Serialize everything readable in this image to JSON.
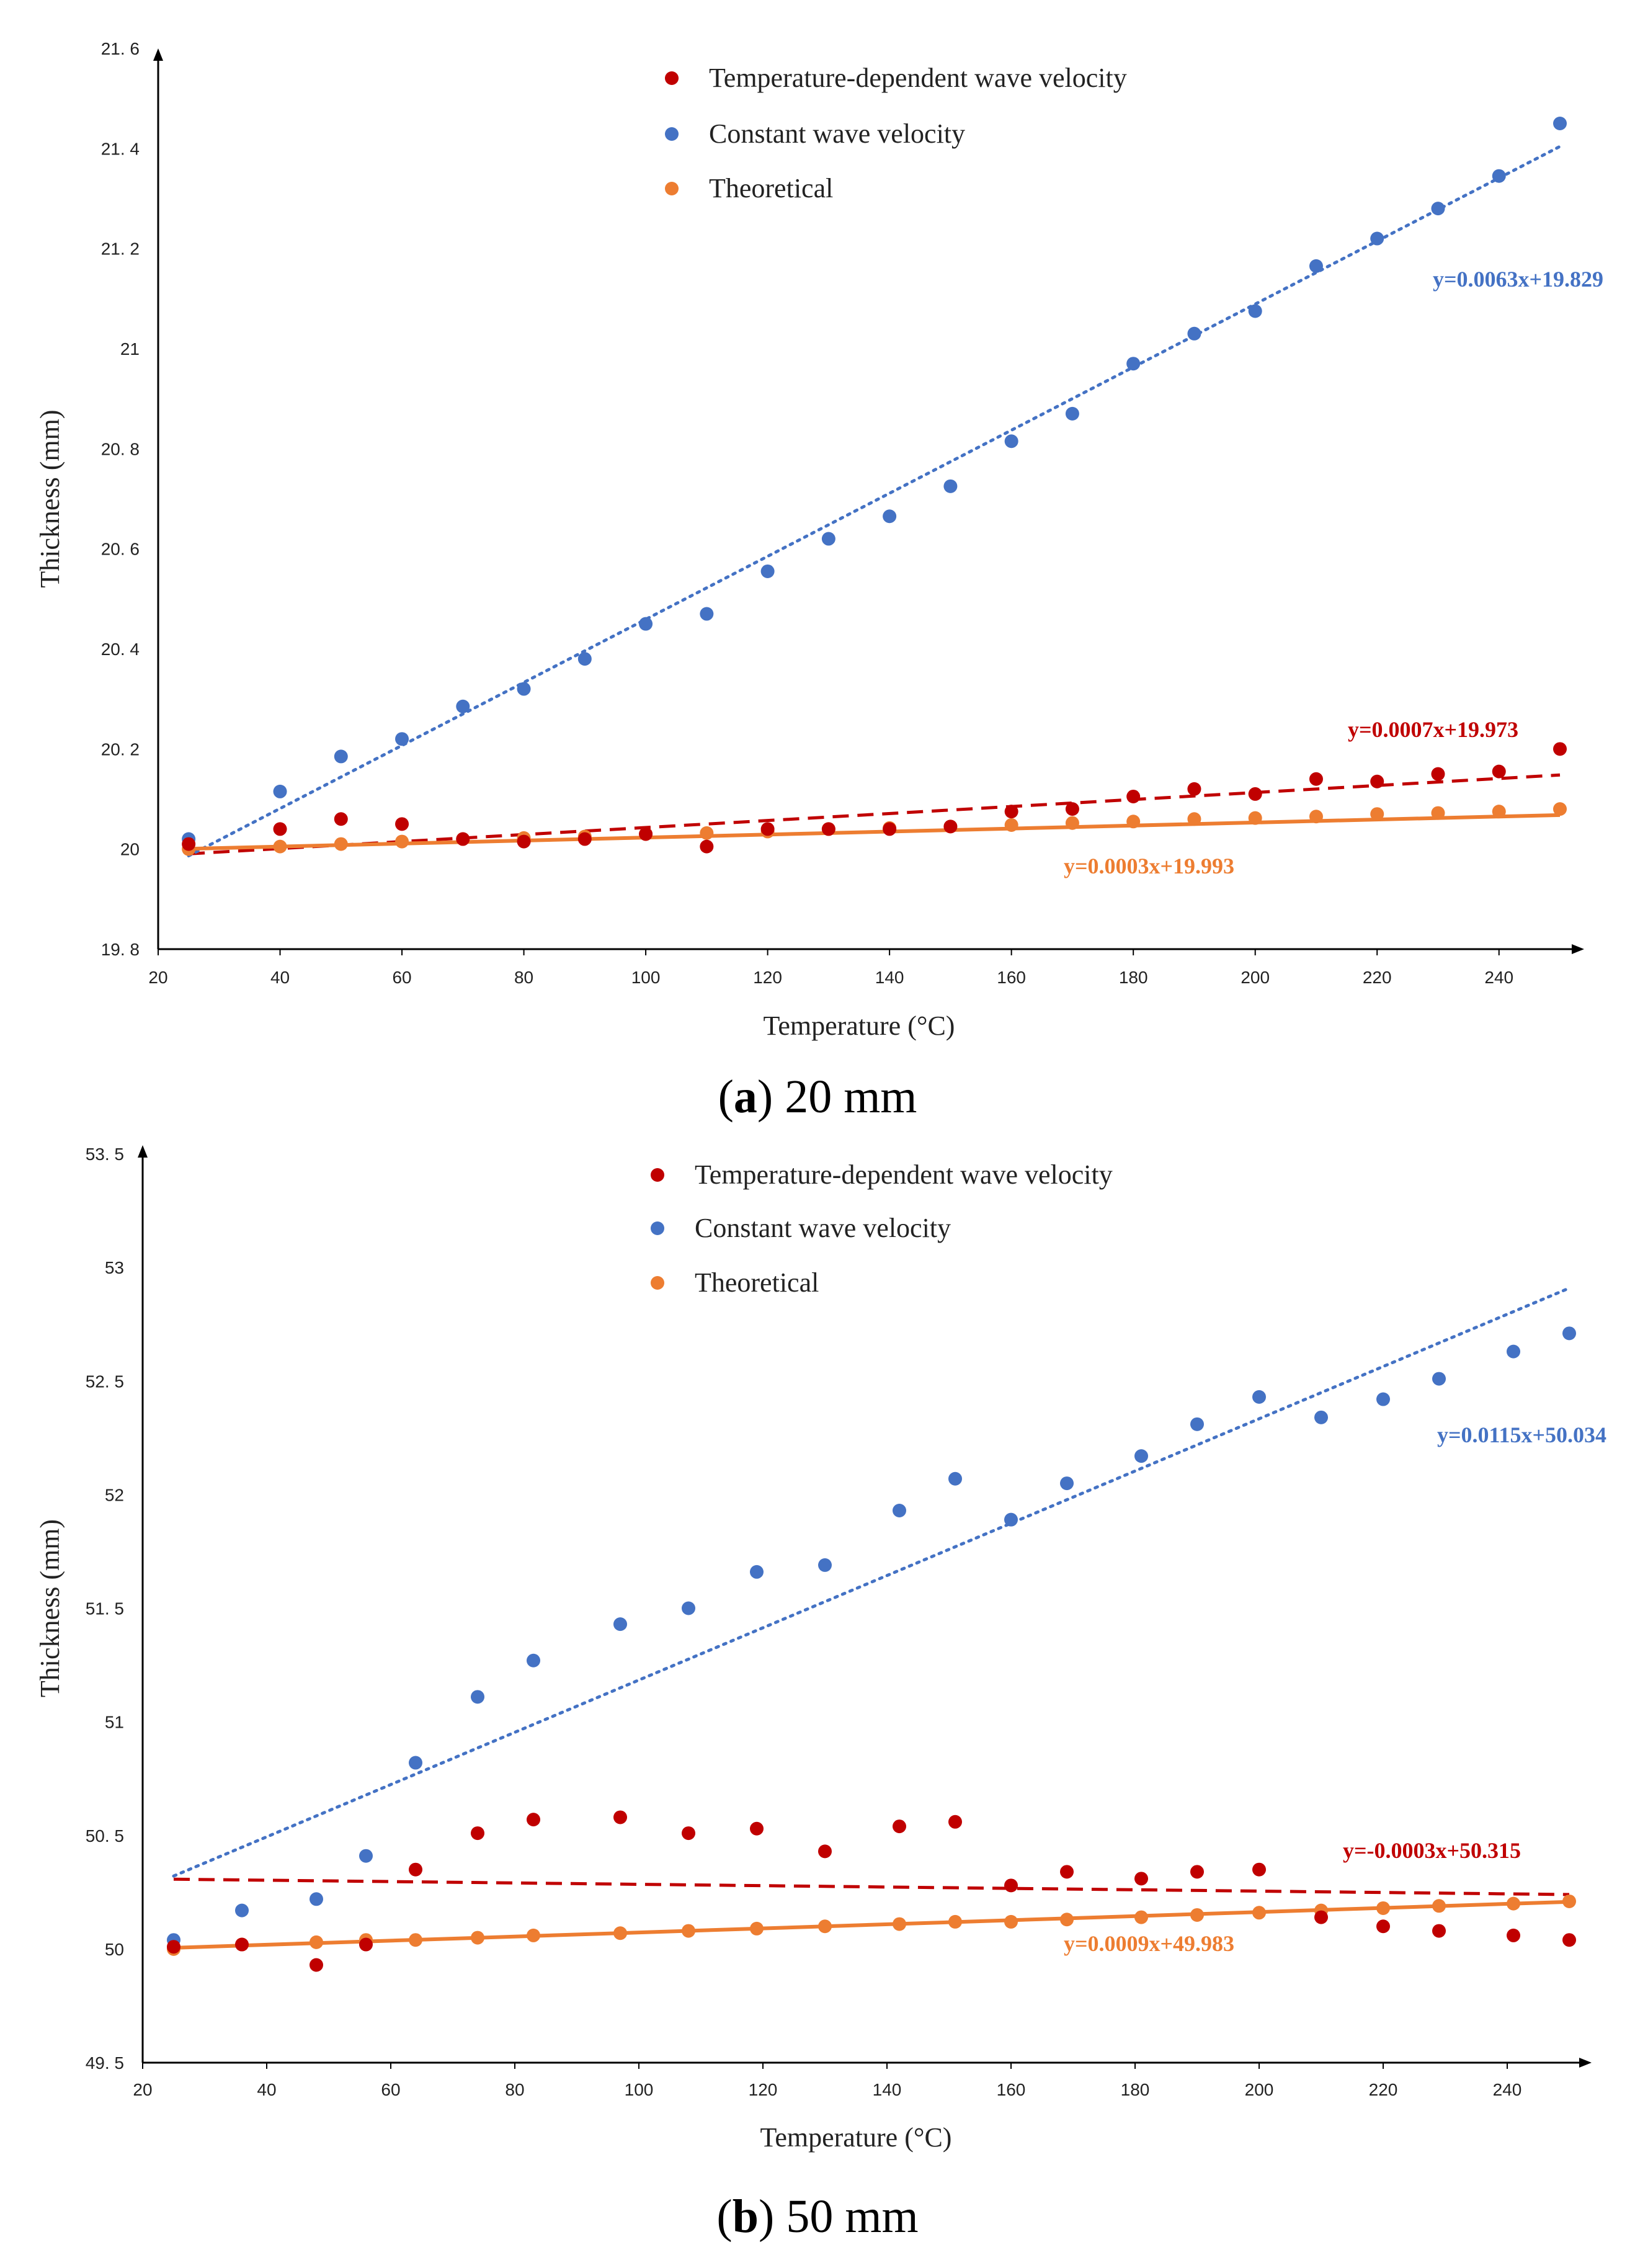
{
  "figure": {
    "captions": [
      {
        "letter": "a",
        "text": " 20 mm"
      },
      {
        "letter": "b",
        "text": " 50 mm"
      }
    ]
  },
  "colors": {
    "red": "#c00000",
    "blue": "#4472c4",
    "orange": "#ed7d31",
    "red_label": "#c00000",
    "blue_label": "#4472c4",
    "orange_label": "#ed7d31"
  },
  "chart_data": [
    {
      "type": "scatter",
      "title": "",
      "xlabel": "Temperature (°C)",
      "ylabel": "Thickness (mm)",
      "xlim": [
        20,
        250
      ],
      "ylim": [
        19.8,
        21.6
      ],
      "xticks": [
        20,
        40,
        60,
        80,
        100,
        120,
        140,
        160,
        180,
        200,
        220,
        240
      ],
      "yticks": [
        19.8,
        20,
        20.2,
        20.4,
        20.6,
        20.8,
        21,
        21.2,
        21.4,
        21.6
      ],
      "ytick_labels": [
        "19. 8",
        "20",
        "20. 2",
        "20. 4",
        "20. 6",
        "20. 8",
        "21",
        "21. 2",
        "21. 4",
        "21. 6"
      ],
      "legend": [
        "Temperature-dependent wave velocity",
        "Constant wave velocity",
        "Theoretical"
      ],
      "series": [
        {
          "name": "Temperature-dependent wave velocity",
          "color": "red",
          "x": [
            25,
            40,
            50,
            60,
            70,
            80,
            90,
            100,
            110,
            120,
            130,
            140,
            150,
            160,
            170,
            180,
            190,
            200,
            210,
            220,
            230,
            240,
            250
          ],
          "y": [
            20.01,
            20.04,
            20.06,
            20.05,
            20.02,
            20.015,
            20.02,
            20.03,
            20.005,
            20.04,
            20.04,
            20.04,
            20.045,
            20.075,
            20.08,
            20.105,
            20.12,
            20.11,
            20.14,
            20.135,
            20.15,
            20.155,
            20.2
          ],
          "trend": {
            "style": "dashed",
            "slope": 0.0007,
            "intercept": 19.973,
            "label": "y=0.0007x+19.973"
          }
        },
        {
          "name": "Constant wave velocity",
          "color": "blue",
          "x": [
            25,
            40,
            50,
            60,
            70,
            80,
            90,
            100,
            110,
            120,
            130,
            140,
            150,
            160,
            170,
            180,
            190,
            200,
            210,
            220,
            230,
            240,
            250
          ],
          "y": [
            20.02,
            20.115,
            20.185,
            20.22,
            20.285,
            20.32,
            20.38,
            20.45,
            20.47,
            20.555,
            20.62,
            20.665,
            20.725,
            20.815,
            20.87,
            20.97,
            21.03,
            21.075,
            21.165,
            21.22,
            21.28,
            21.345,
            21.45
          ],
          "trend": {
            "style": "dotted",
            "slope": 0.0063,
            "intercept": 19.829,
            "label": "y=0.0063x+19.829"
          }
        },
        {
          "name": "Theoretical",
          "color": "orange",
          "x": [
            25,
            40,
            50,
            60,
            70,
            80,
            90,
            100,
            110,
            120,
            130,
            140,
            150,
            160,
            170,
            180,
            190,
            200,
            210,
            220,
            230,
            240,
            250
          ],
          "y": [
            20.0,
            20.005,
            20.01,
            20.015,
            20.02,
            20.022,
            20.025,
            20.03,
            20.032,
            20.035,
            20.04,
            20.042,
            20.045,
            20.048,
            20.052,
            20.055,
            20.06,
            20.062,
            20.065,
            20.07,
            20.072,
            20.075,
            20.08
          ],
          "trend": {
            "style": "solid",
            "slope": 0.0003,
            "intercept": 19.993,
            "label": "y=0.0003x+19.993"
          }
        }
      ]
    },
    {
      "type": "scatter",
      "title": "",
      "xlabel": "Temperature (°C)",
      "ylabel": "Thickness (mm)",
      "xlim": [
        20,
        250
      ],
      "ylim": [
        49.5,
        53.5
      ],
      "xticks": [
        20,
        40,
        60,
        80,
        100,
        120,
        140,
        160,
        180,
        200,
        220,
        240
      ],
      "yticks": [
        49.5,
        50,
        50.5,
        51,
        51.5,
        52,
        52.5,
        53,
        53.5
      ],
      "ytick_labels": [
        "49. 5",
        "50",
        "50. 5",
        "51",
        "51. 5",
        "52",
        "52. 5",
        "53",
        "53. 5"
      ],
      "legend": [
        "Temperature-dependent wave velocity",
        "Constant wave velocity",
        "Theoretical"
      ],
      "series": [
        {
          "name": "Temperature-dependent wave velocity",
          "color": "red",
          "x": [
            25,
            36,
            48,
            56,
            64,
            74,
            83,
            97,
            108,
            119,
            130,
            142,
            151,
            160,
            169,
            181,
            190,
            200,
            210,
            220,
            229,
            241,
            250
          ],
          "y": [
            50.01,
            50.02,
            49.93,
            50.02,
            50.35,
            50.51,
            50.57,
            50.58,
            50.51,
            50.53,
            50.43,
            50.54,
            50.56,
            50.28,
            50.34,
            50.31,
            50.34,
            50.35,
            50.14,
            50.1,
            50.08,
            50.06,
            50.04
          ],
          "trend": {
            "style": "dashed",
            "slope": -0.0003,
            "intercept": 50.315,
            "label": "y=-0.0003x+50.315"
          }
        },
        {
          "name": "Constant wave velocity",
          "color": "blue",
          "x": [
            25,
            36,
            48,
            56,
            64,
            74,
            83,
            97,
            108,
            119,
            130,
            142,
            151,
            160,
            169,
            181,
            190,
            200,
            210,
            220,
            229,
            241,
            250
          ],
          "y": [
            50.04,
            50.17,
            50.22,
            50.41,
            50.82,
            51.11,
            51.27,
            51.43,
            51.5,
            51.66,
            51.69,
            51.93,
            52.07,
            51.89,
            52.05,
            52.17,
            52.31,
            52.43,
            52.34,
            52.42,
            52.51,
            52.63,
            52.71
          ],
          "trend": {
            "style": "dotted",
            "slope": 0.0115,
            "intercept": 50.034,
            "label": "y=0.0115x+50.034"
          }
        },
        {
          "name": "Theoretical",
          "color": "orange",
          "x": [
            25,
            36,
            48,
            56,
            64,
            74,
            83,
            97,
            108,
            119,
            130,
            142,
            151,
            160,
            169,
            181,
            190,
            200,
            210,
            220,
            229,
            241,
            250
          ],
          "y": [
            50.0,
            50.02,
            50.03,
            50.04,
            50.04,
            50.05,
            50.06,
            50.07,
            50.08,
            50.09,
            50.1,
            50.11,
            50.12,
            50.12,
            50.13,
            50.14,
            50.15,
            50.16,
            50.17,
            50.18,
            50.19,
            50.2,
            50.21
          ],
          "trend": {
            "style": "solid",
            "slope": 0.0009,
            "intercept": 49.983,
            "label": "y=0.0009x+49.983"
          }
        }
      ]
    }
  ]
}
